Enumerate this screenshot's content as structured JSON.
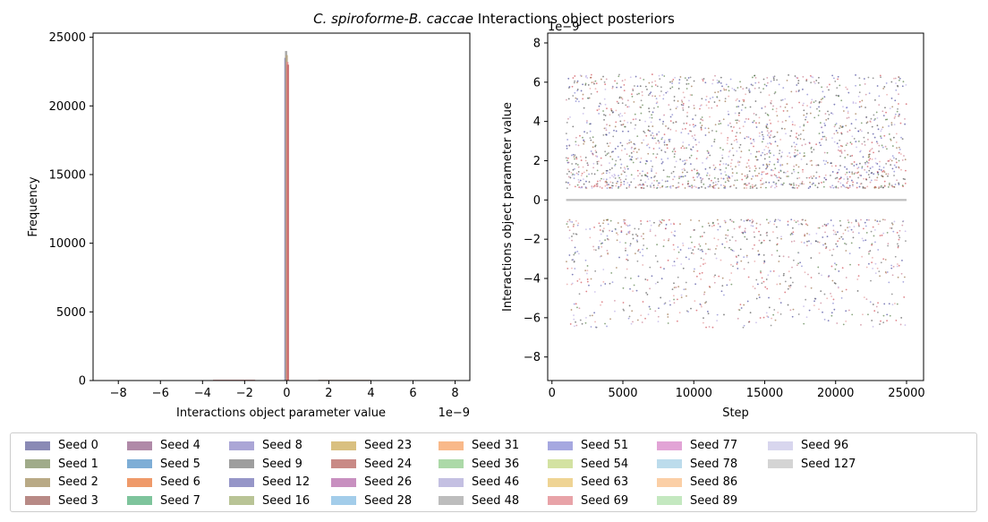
{
  "figure": {
    "title_italic": "C. spiroforme-B. caccae",
    "title_rest": " Interactions object posteriors"
  },
  "chart_data": [
    {
      "type": "bar",
      "subtype": "histogram",
      "xlabel": "Interactions object parameter value",
      "ylabel": "Frequency",
      "x_offset_label": "1e−9",
      "xlim": [
        -9.2,
        8.7
      ],
      "ylim": [
        0,
        25300
      ],
      "xticks": [
        -8,
        -6,
        -4,
        -2,
        0,
        2,
        4,
        6,
        8
      ],
      "xtick_labels": [
        "−8",
        "−6",
        "−4",
        "−2",
        "0",
        "2",
        "4",
        "6",
        "8"
      ],
      "yticks": [
        0,
        5000,
        10000,
        15000,
        20000,
        25000
      ],
      "ytick_labels": [
        "0",
        "5000",
        "10000",
        "15000",
        "20000",
        "25000"
      ],
      "grid": false,
      "bars": [
        {
          "x": -0.06,
          "value": 23500,
          "color": "#7c7cb8"
        },
        {
          "x": -0.03,
          "value": 24000,
          "color": "#9a9a9a"
        },
        {
          "x": 0.0,
          "value": 23700,
          "color": "#b8a480"
        },
        {
          "x": 0.03,
          "value": 23200,
          "color": "#e18a8a"
        },
        {
          "x": 0.06,
          "value": 23000,
          "color": "#c96a6a"
        }
      ],
      "tail_bins": [
        {
          "from": -3.5,
          "to": -1.5,
          "value": 60,
          "color": "#c96a6a"
        },
        {
          "from": 1.5,
          "to": 4.0,
          "value": 50,
          "color": "#8a6a5a"
        }
      ]
    },
    {
      "type": "scatter",
      "xlabel": "Step",
      "ylabel": "Interactions object parameter value",
      "y_offset_label": "1e−9",
      "xlim": [
        -300,
        26200
      ],
      "ylim": [
        -9.2,
        8.5
      ],
      "xticks": [
        0,
        5000,
        10000,
        15000,
        20000,
        25000
      ],
      "xtick_labels": [
        "0",
        "5000",
        "10000",
        "15000",
        "20000",
        "25000"
      ],
      "yticks": [
        -8,
        -6,
        -4,
        -2,
        0,
        2,
        4,
        6,
        8
      ],
      "ytick_labels": [
        "−8",
        "−6",
        "−4",
        "−2",
        "0",
        "2",
        "4",
        "6",
        "8"
      ],
      "grid": false,
      "step_range": [
        1000,
        25000
      ],
      "zero_band_color": "#bdbdbd"
    }
  ],
  "legend": {
    "placement": "below",
    "ncol": 9,
    "items": [
      {
        "label": "Seed 0",
        "color": "#8a8ab5"
      },
      {
        "label": "Seed 1",
        "color": "#a0ab8a"
      },
      {
        "label": "Seed 2",
        "color": "#b9aa86"
      },
      {
        "label": "Seed 3",
        "color": "#b88a86"
      },
      {
        "label": "Seed 4",
        "color": "#b08aa8"
      },
      {
        "label": "Seed 5",
        "color": "#7eaed6"
      },
      {
        "label": "Seed 6",
        "color": "#ef9a6a"
      },
      {
        "label": "Seed 7",
        "color": "#7ec49c"
      },
      {
        "label": "Seed 8",
        "color": "#aba6d6"
      },
      {
        "label": "Seed 9",
        "color": "#9e9e9e"
      },
      {
        "label": "Seed 12",
        "color": "#9696c8"
      },
      {
        "label": "Seed 16",
        "color": "#b9c496"
      },
      {
        "label": "Seed 23",
        "color": "#d9c080"
      },
      {
        "label": "Seed 24",
        "color": "#c98a86"
      },
      {
        "label": "Seed 26",
        "color": "#c890c0"
      },
      {
        "label": "Seed 28",
        "color": "#a3cdea"
      },
      {
        "label": "Seed 31",
        "color": "#f9b98a"
      },
      {
        "label": "Seed 36",
        "color": "#acd9a8"
      },
      {
        "label": "Seed 46",
        "color": "#c4c0e2"
      },
      {
        "label": "Seed 48",
        "color": "#bdbdbd"
      },
      {
        "label": "Seed 51",
        "color": "#a6a8e0"
      },
      {
        "label": "Seed 54",
        "color": "#d3e2a2"
      },
      {
        "label": "Seed 63",
        "color": "#efd494"
      },
      {
        "label": "Seed 69",
        "color": "#e8a3a8"
      },
      {
        "label": "Seed 77",
        "color": "#e2a4d6"
      },
      {
        "label": "Seed 78",
        "color": "#bcdcec"
      },
      {
        "label": "Seed 86",
        "color": "#fbcfa6"
      },
      {
        "label": "Seed 89",
        "color": "#c4e8c0"
      },
      {
        "label": "Seed 96",
        "color": "#d8d6ee"
      },
      {
        "label": "Seed 127",
        "color": "#d4d4d4"
      }
    ]
  },
  "scatter_colors": [
    "#2a2a8a",
    "#c8323c",
    "#3c6a2a",
    "#333333",
    "#7070c8",
    "#b0a0e0",
    "#8a5a2a",
    "#c06a80",
    "#5a5a5a",
    "#e08a8a"
  ]
}
